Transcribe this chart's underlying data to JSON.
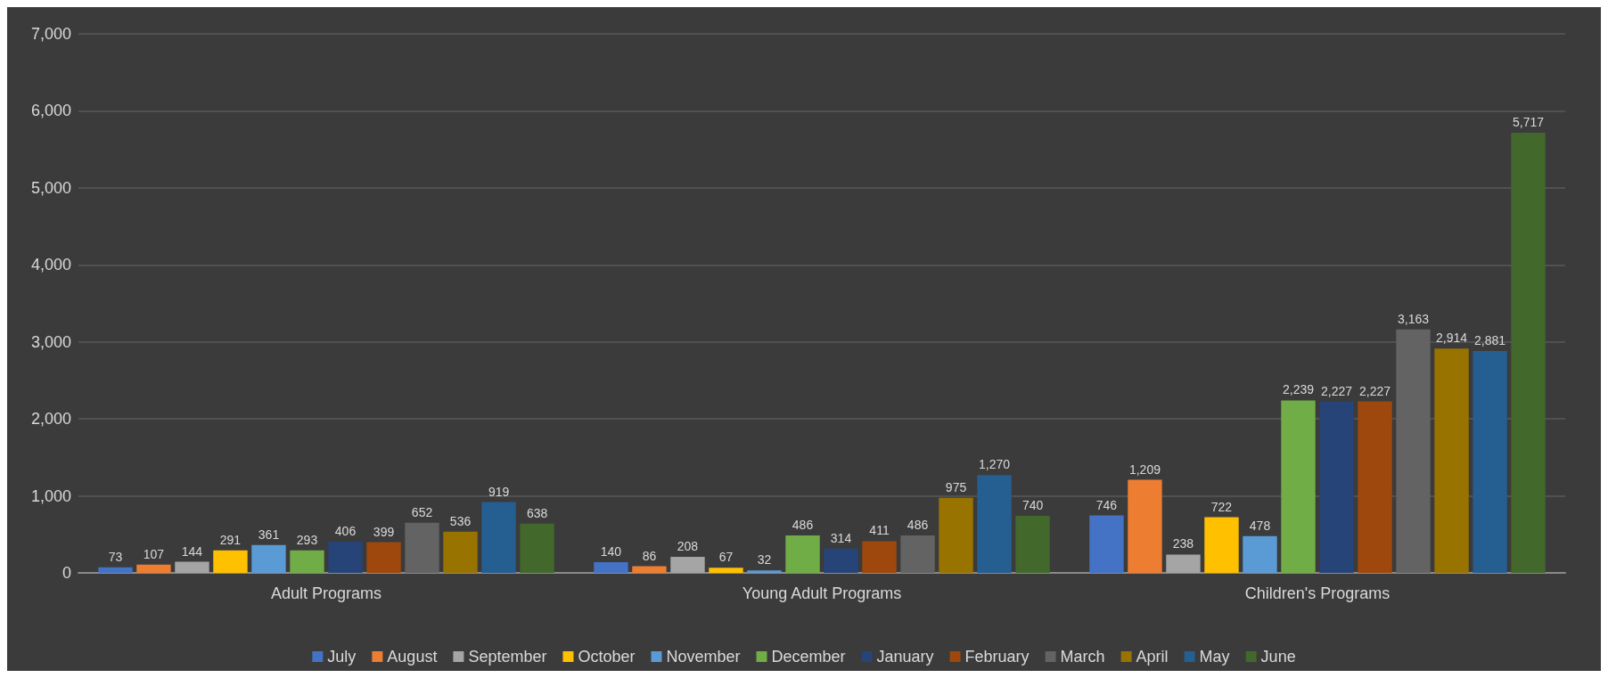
{
  "chart_data": {
    "type": "bar",
    "categories": [
      "Adult Programs",
      "Young Adult Programs",
      "Children's Programs"
    ],
    "series": [
      {
        "name": "July",
        "color": "#4472c4",
        "values": [
          73,
          140,
          746
        ],
        "value_labels": [
          "73",
          "140",
          "746"
        ]
      },
      {
        "name": "August",
        "color": "#ed7d31",
        "values": [
          107,
          86,
          1209
        ],
        "value_labels": [
          "107",
          "86",
          "1,209"
        ]
      },
      {
        "name": "September",
        "color": "#a5a5a5",
        "values": [
          144,
          208,
          238
        ],
        "value_labels": [
          "144",
          "208",
          "238"
        ]
      },
      {
        "name": "October",
        "color": "#ffc000",
        "values": [
          291,
          67,
          722
        ],
        "value_labels": [
          "291",
          "67",
          "722"
        ]
      },
      {
        "name": "November",
        "color": "#5b9bd5",
        "values": [
          361,
          32,
          478
        ],
        "value_labels": [
          "361",
          "32",
          "478"
        ]
      },
      {
        "name": "December",
        "color": "#70ad47",
        "values": [
          293,
          486,
          2239
        ],
        "value_labels": [
          "293",
          "486",
          "2,239"
        ]
      },
      {
        "name": "January",
        "color": "#264478",
        "values": [
          406,
          314,
          2227
        ],
        "value_labels": [
          "406",
          "314",
          "2,227"
        ]
      },
      {
        "name": "February",
        "color": "#9e480e",
        "values": [
          399,
          411,
          2227
        ],
        "value_labels": [
          "399",
          "411",
          "2,227"
        ]
      },
      {
        "name": "March",
        "color": "#636363",
        "values": [
          652,
          486,
          3163
        ],
        "value_labels": [
          "652",
          "486",
          "3,163"
        ]
      },
      {
        "name": "April",
        "color": "#997300",
        "values": [
          536,
          975,
          2914
        ],
        "value_labels": [
          "536",
          "975",
          "2,914"
        ]
      },
      {
        "name": "May",
        "color": "#255e91",
        "values": [
          919,
          1270,
          2881
        ],
        "value_labels": [
          "919",
          "1,270",
          "2,881"
        ]
      },
      {
        "name": "June",
        "color": "#43682b",
        "values": [
          638,
          740,
          5717
        ],
        "value_labels": [
          "638",
          "740",
          "5,717"
        ]
      }
    ],
    "ylim": [
      0,
      7000
    ],
    "yticks": [
      {
        "value": 0,
        "label": "0"
      },
      {
        "value": 1000,
        "label": "1,000"
      },
      {
        "value": 2000,
        "label": "2,000"
      },
      {
        "value": 3000,
        "label": "3,000"
      },
      {
        "value": 4000,
        "label": "4,000"
      },
      {
        "value": 5000,
        "label": "5,000"
      },
      {
        "value": 6000,
        "label": "6,000"
      },
      {
        "value": 7000,
        "label": "7,000"
      }
    ],
    "grid": "y",
    "legend": "bottom"
  }
}
